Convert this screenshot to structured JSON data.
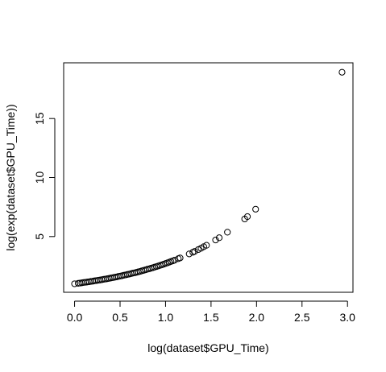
{
  "chart_data": {
    "type": "scatter",
    "title": "",
    "xlabel": "log(dataset$GPU_Time)",
    "ylabel": "log(exp(dataset$GPU_Time))",
    "xlim": [
      -0.12,
      3.06
    ],
    "ylim": [
      0.28,
      19.72
    ],
    "x_ticks": [
      0.0,
      0.5,
      1.0,
      1.5,
      2.0,
      2.5,
      3.0
    ],
    "x_tick_labels": [
      "0.0",
      "0.5",
      "1.0",
      "1.5",
      "2.0",
      "2.5",
      "3.0"
    ],
    "y_ticks": [
      5,
      10,
      15
    ],
    "y_tick_labels": [
      "5",
      "10",
      "15"
    ],
    "grid": false,
    "legend": "none",
    "marker": "open-circle",
    "color": "#000000",
    "points": [
      [
        0.0,
        1.0
      ],
      [
        0.04,
        1.04
      ],
      [
        0.06,
        1.06
      ],
      [
        0.08,
        1.08
      ],
      [
        0.1,
        1.11
      ],
      [
        0.12,
        1.13
      ],
      [
        0.14,
        1.15
      ],
      [
        0.16,
        1.17
      ],
      [
        0.18,
        1.2
      ],
      [
        0.2,
        1.22
      ],
      [
        0.22,
        1.25
      ],
      [
        0.24,
        1.27
      ],
      [
        0.26,
        1.3
      ],
      [
        0.28,
        1.32
      ],
      [
        0.3,
        1.35
      ],
      [
        0.32,
        1.38
      ],
      [
        0.34,
        1.4
      ],
      [
        0.36,
        1.43
      ],
      [
        0.38,
        1.46
      ],
      [
        0.4,
        1.49
      ],
      [
        0.42,
        1.52
      ],
      [
        0.44,
        1.55
      ],
      [
        0.46,
        1.58
      ],
      [
        0.48,
        1.62
      ],
      [
        0.5,
        1.65
      ],
      [
        0.52,
        1.68
      ],
      [
        0.54,
        1.72
      ],
      [
        0.56,
        1.75
      ],
      [
        0.58,
        1.79
      ],
      [
        0.6,
        1.82
      ],
      [
        0.62,
        1.86
      ],
      [
        0.64,
        1.9
      ],
      [
        0.66,
        1.93
      ],
      [
        0.68,
        1.97
      ],
      [
        0.7,
        2.01
      ],
      [
        0.72,
        2.05
      ],
      [
        0.74,
        2.1
      ],
      [
        0.76,
        2.14
      ],
      [
        0.78,
        2.18
      ],
      [
        0.8,
        2.23
      ],
      [
        0.82,
        2.27
      ],
      [
        0.84,
        2.32
      ],
      [
        0.86,
        2.36
      ],
      [
        0.88,
        2.41
      ],
      [
        0.9,
        2.46
      ],
      [
        0.92,
        2.51
      ],
      [
        0.94,
        2.56
      ],
      [
        0.96,
        2.61
      ],
      [
        0.98,
        2.66
      ],
      [
        1.0,
        2.72
      ],
      [
        1.02,
        2.77
      ],
      [
        1.04,
        2.83
      ],
      [
        1.06,
        2.89
      ],
      [
        1.08,
        2.94
      ],
      [
        1.1,
        3.0
      ],
      [
        1.14,
        3.13
      ],
      [
        1.16,
        3.19
      ],
      [
        1.26,
        3.53
      ],
      [
        1.3,
        3.67
      ],
      [
        1.32,
        3.74
      ],
      [
        1.36,
        3.9
      ],
      [
        1.39,
        4.01
      ],
      [
        1.42,
        4.14
      ],
      [
        1.45,
        4.26
      ],
      [
        1.55,
        4.71
      ],
      [
        1.59,
        4.9
      ],
      [
        1.68,
        5.37
      ],
      [
        1.87,
        6.49
      ],
      [
        1.9,
        6.69
      ],
      [
        1.99,
        7.32
      ],
      [
        2.94,
        18.92
      ]
    ]
  }
}
